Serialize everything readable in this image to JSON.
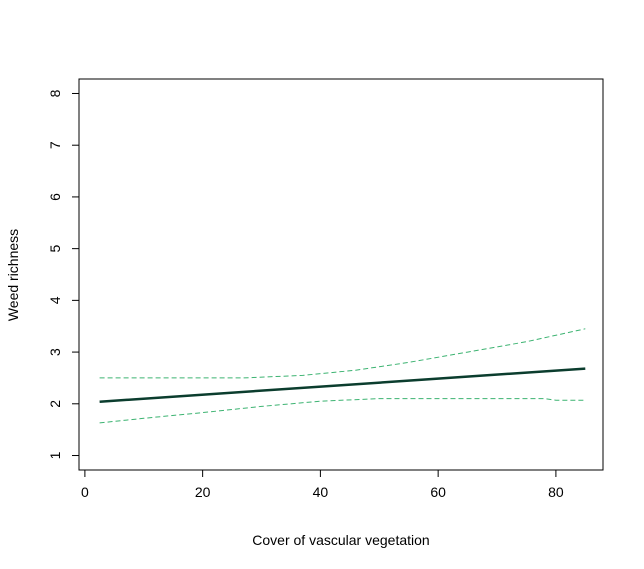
{
  "chart_data": {
    "type": "line",
    "xlabel": "Cover of vascular vegetation",
    "ylabel": "Weed richness",
    "xlim": [
      -1,
      88
    ],
    "ylim": [
      0.72,
      8.28
    ],
    "xticks": [
      0,
      20,
      40,
      60,
      80
    ],
    "yticks": [
      1,
      2,
      3,
      4,
      5,
      6,
      7,
      8
    ],
    "grid": false,
    "legend": "none",
    "series": [
      {
        "style": "solid",
        "color": "#0b3d2e",
        "x": [
          2.5,
          85
        ],
        "y": [
          2.04,
          2.68
        ]
      },
      {
        "style": "dashed",
        "color": "#3cb371",
        "x": [
          2.5,
          10,
          20,
          27,
          37,
          46,
          55,
          65,
          75,
          85
        ],
        "y": [
          2.5,
          2.5,
          2.5,
          2.5,
          2.55,
          2.65,
          2.8,
          3.0,
          3.2,
          3.45
        ]
      },
      {
        "style": "dashed",
        "color": "#3cb371",
        "x": [
          2.5,
          10,
          20,
          30,
          40,
          50,
          60,
          70,
          78,
          80,
          85
        ],
        "y": [
          1.63,
          1.72,
          1.83,
          1.95,
          2.05,
          2.1,
          2.1,
          2.1,
          2.1,
          2.07,
          2.07
        ]
      }
    ]
  }
}
